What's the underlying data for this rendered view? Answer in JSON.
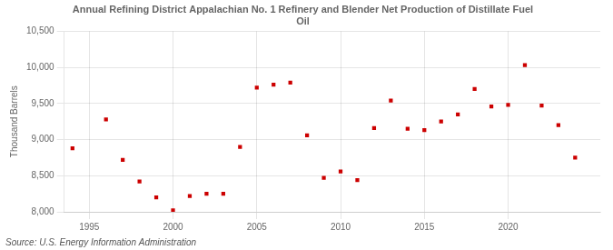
{
  "chart_data": {
    "type": "scatter",
    "title": "Annual Refining District Appalachian No. 1 Refinery and Blender Net Production of Distillate Fuel\nOil",
    "ylabel": "Thousand Barrels",
    "source": "Source: U.S. Energy Information Administration",
    "x": [
      1994,
      1996,
      1997,
      1998,
      1999,
      2000,
      2001,
      2002,
      2003,
      2004,
      2005,
      2006,
      2007,
      2008,
      2009,
      2010,
      2011,
      2012,
      2013,
      2014,
      2015,
      2016,
      2017,
      2018,
      2019,
      2020,
      2021,
      2022,
      2023,
      2024
    ],
    "values": [
      8880,
      9280,
      8720,
      8420,
      8200,
      8020,
      8220,
      8250,
      8250,
      8900,
      9720,
      9760,
      9790,
      9060,
      8470,
      8560,
      8440,
      9160,
      9540,
      9150,
      9130,
      9250,
      9350,
      9700,
      9460,
      9480,
      10030,
      9470,
      9200,
      8750
    ],
    "color": "#cc0000",
    "marker": "square",
    "xlim": [
      1993.5,
      2025.5
    ],
    "xticks": [
      1995,
      2000,
      2005,
      2010,
      2015,
      2020
    ],
    "ylim": [
      8000,
      10500
    ],
    "yticks": [
      {
        "value": 8000,
        "label": "8,000"
      },
      {
        "value": 8500,
        "label": "8,500"
      },
      {
        "value": 9000,
        "label": "9,000"
      },
      {
        "value": 9500,
        "label": "9,500"
      },
      {
        "value": 10000,
        "label": "10,000"
      },
      {
        "value": 10500,
        "label": "10,500"
      }
    ],
    "grid": true
  }
}
